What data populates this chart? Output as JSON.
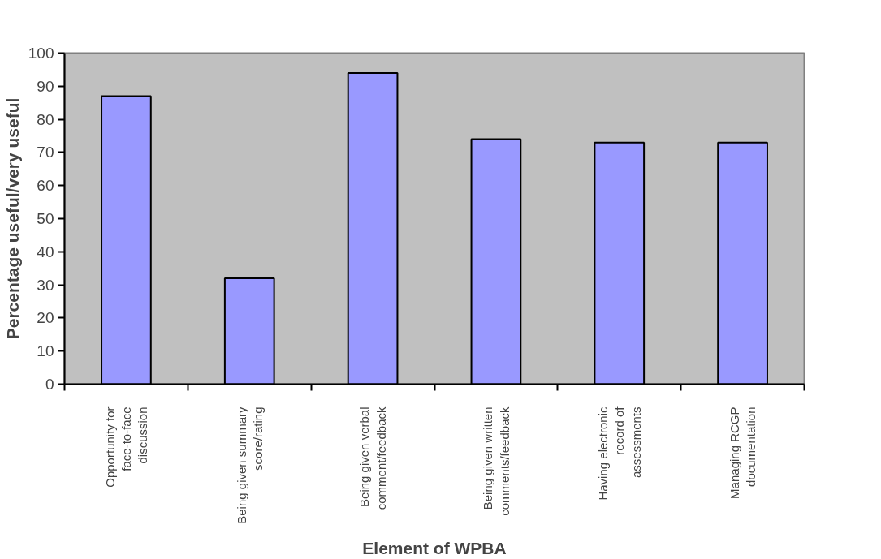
{
  "chart_data": {
    "type": "bar",
    "xlabel": "Element of WPBA",
    "ylabel": "Percentage useful/very useful",
    "categories": [
      "Opportunity for face-to-face discussion",
      "Being given summary score/rating",
      "Being given verbal comment/feedback",
      "Being given written comments/feedback",
      "Having electronic record of assessments",
      "Managing RCGP documentation"
    ],
    "values": [
      87,
      32,
      94,
      74,
      73,
      73
    ],
    "color": "#9999ff",
    "ylim": [
      0,
      100
    ],
    "yticks": [
      0,
      10,
      20,
      30,
      40,
      50,
      60,
      70,
      80,
      90,
      100
    ],
    "grid": false
  }
}
